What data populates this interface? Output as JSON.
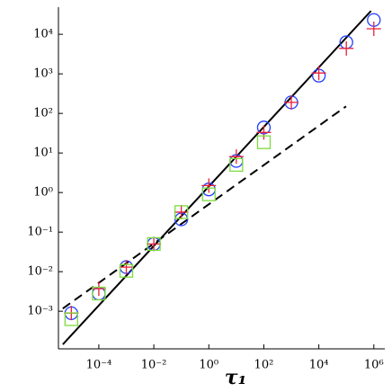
{
  "chart_data": {
    "type": "scatter",
    "x_label": "τ₁",
    "log_x": true,
    "log_y": true,
    "xlim": [
      3.4e-06,
      2000000
    ],
    "ylim": [
      0.000112,
      43600
    ],
    "xticks": [
      {
        "value": 0.0001,
        "label": "10⁻⁴"
      },
      {
        "value": 0.01,
        "label": "10⁻²"
      },
      {
        "value": 1,
        "label": "10⁰"
      },
      {
        "value": 100,
        "label": "10²"
      },
      {
        "value": 10000,
        "label": "10⁴"
      },
      {
        "value": 1000000,
        "label": "10⁶"
      }
    ],
    "yticks": [
      {
        "value": 0.001,
        "label": "10⁻³"
      },
      {
        "value": 0.01,
        "label": "10⁻²"
      },
      {
        "value": 0.1,
        "label": "10⁻¹"
      },
      {
        "value": 1,
        "label": "10⁰"
      },
      {
        "value": 10,
        "label": "10¹"
      },
      {
        "value": 100,
        "label": "10²"
      },
      {
        "value": 1000,
        "label": "10³"
      },
      {
        "value": 10000,
        "label": "10⁴"
      }
    ],
    "x": [
      1e-05,
      0.0001,
      0.001,
      0.01,
      0.1,
      1,
      10,
      100,
      1000,
      10000,
      100000,
      1000000
    ],
    "series": [
      {
        "marker": "circle",
        "color": "#1f3fff",
        "values": [
          0.00089,
          0.0028,
          0.013,
          0.05,
          0.21,
          1.2,
          6.3,
          44,
          190,
          900,
          6300,
          23000
        ]
      },
      {
        "marker": "plus",
        "color": "#e8203a",
        "values": [
          0.0009,
          0.0037,
          0.013,
          0.05,
          0.32,
          1.5,
          8.1,
          33,
          190,
          1050,
          4400,
          13800
        ]
      },
      {
        "marker": "square",
        "color": "#7ddc3c",
        "values": [
          0.00063,
          0.0028,
          0.0105,
          0.05,
          0.32,
          0.9,
          5.0,
          18.7,
          null,
          null,
          null,
          null
        ]
      }
    ],
    "lines": [
      {
        "style": "solid",
        "color": "#000000",
        "x": [
          4.9e-06,
          790000
        ],
        "values": [
          0.000145,
          39000
        ]
      },
      {
        "style": "dashed",
        "color": "#000000",
        "x": [
          4.9e-06,
          98000
        ],
        "values": [
          0.00117,
          151
        ]
      }
    ]
  }
}
